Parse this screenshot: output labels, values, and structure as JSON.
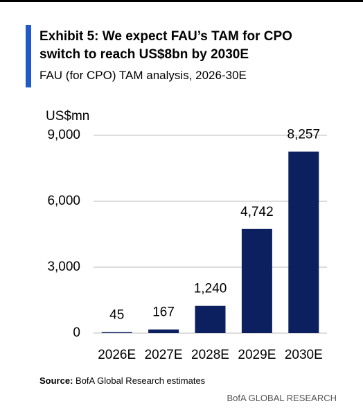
{
  "title": "Exhibit 5: We expect FAU’s TAM for CPO switch to reach US$8bn by 2030E",
  "subtitle": "FAU (for CPO) TAM analysis, 2026-30E",
  "source_label": "Source:",
  "source_text": "BofA Global Research estimates",
  "footer": "BofA GLOBAL RESEARCH",
  "chart_data": {
    "type": "bar",
    "y_axis_label": "US$mn",
    "categories": [
      "2026E",
      "2027E",
      "2028E",
      "2029E",
      "2030E"
    ],
    "values": [
      45,
      167,
      1240,
      4742,
      8257
    ],
    "value_labels": [
      "45",
      "167",
      "1,240",
      "4,742",
      "8,257"
    ],
    "color": "#0c1f5e",
    "ylim": [
      0,
      9000
    ],
    "yticks": [
      0,
      {
        "value": 3000,
        "label": "3,000"
      },
      {
        "value": 6000,
        "label": "6,000"
      },
      {
        "value": 9000,
        "label": "9,000"
      }
    ],
    "grid": true
  }
}
